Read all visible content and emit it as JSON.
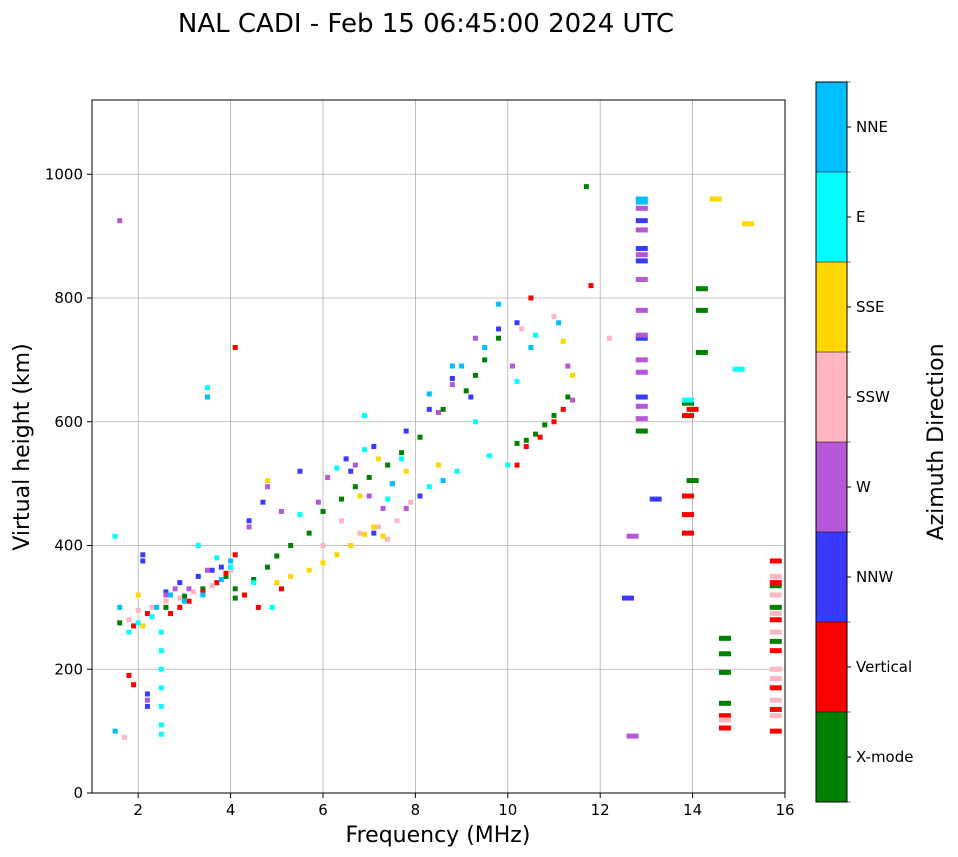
{
  "chart_data": {
    "type": "scatter",
    "title": "NAL CADI - Feb 15 06:45:00 2024 UTC",
    "xlabel": "Frequency (MHz)",
    "ylabel": "Virtual height (km)",
    "xlim": [
      1,
      16
    ],
    "ylim": [
      0,
      1120
    ],
    "xticks": [
      "2",
      "4",
      "6",
      "8",
      "10",
      "12",
      "14",
      "16"
    ],
    "yticks": [
      "0",
      "200",
      "400",
      "600",
      "800",
      "1000"
    ],
    "grid": true,
    "colorbar": {
      "label": "Azimuth Direction",
      "categories": [
        {
          "name": "X-mode",
          "color": "#008000"
        },
        {
          "name": "Vertical",
          "color": "#ff0000"
        },
        {
          "name": "NNW",
          "color": "#3a3aff"
        },
        {
          "name": "W",
          "color": "#b557d6"
        },
        {
          "name": "SSW",
          "color": "#ffb6c1"
        },
        {
          "name": "SSE",
          "color": "#ffd700"
        },
        {
          "name": "E",
          "color": "#00ffff"
        },
        {
          "name": "NNE",
          "color": "#00bfff"
        }
      ]
    },
    "series": [
      {
        "name": "X-mode",
        "points": [
          [
            1.6,
            275
          ],
          [
            2.6,
            300
          ],
          [
            3.0,
            318
          ],
          [
            3.4,
            330
          ],
          [
            3.9,
            350
          ],
          [
            4.1,
            330
          ],
          [
            4.1,
            315
          ],
          [
            4.5,
            345
          ],
          [
            4.8,
            365
          ],
          [
            5.0,
            383
          ],
          [
            5.3,
            400
          ],
          [
            5.7,
            420
          ],
          [
            6.0,
            455
          ],
          [
            6.4,
            475
          ],
          [
            6.7,
            495
          ],
          [
            7.0,
            510
          ],
          [
            7.4,
            530
          ],
          [
            7.7,
            550
          ],
          [
            8.1,
            575
          ],
          [
            8.6,
            620
          ],
          [
            9.1,
            650
          ],
          [
            9.3,
            675
          ],
          [
            9.5,
            700
          ],
          [
            9.8,
            735
          ],
          [
            10.2,
            565
          ],
          [
            10.4,
            570
          ],
          [
            10.6,
            580
          ],
          [
            10.8,
            595
          ],
          [
            11.0,
            610
          ],
          [
            11.3,
            640
          ],
          [
            12.9,
            585
          ],
          [
            14.2,
            780
          ],
          [
            14.2,
            815
          ],
          [
            14.2,
            712
          ],
          [
            14.7,
            250
          ],
          [
            14.7,
            225
          ],
          [
            14.7,
            195
          ],
          [
            14.7,
            145
          ],
          [
            15.8,
            335
          ],
          [
            15.8,
            300
          ],
          [
            15.8,
            245
          ],
          [
            11.7,
            980
          ],
          [
            13.9,
            630
          ],
          [
            14.0,
            505
          ]
        ]
      },
      {
        "name": "Vertical",
        "points": [
          [
            1.9,
            270
          ],
          [
            2.2,
            290
          ],
          [
            2.7,
            290
          ],
          [
            2.9,
            300
          ],
          [
            3.1,
            310
          ],
          [
            3.4,
            325
          ],
          [
            3.7,
            340
          ],
          [
            3.9,
            355
          ],
          [
            4.1,
            385
          ],
          [
            4.3,
            320
          ],
          [
            4.6,
            300
          ],
          [
            5.1,
            330
          ],
          [
            10.2,
            530
          ],
          [
            10.4,
            560
          ],
          [
            10.7,
            575
          ],
          [
            11.0,
            600
          ],
          [
            11.2,
            620
          ],
          [
            10.5,
            800
          ],
          [
            11.8,
            820
          ],
          [
            4.1,
            720
          ],
          [
            13.9,
            610
          ],
          [
            13.9,
            480
          ],
          [
            13.9,
            450
          ],
          [
            13.9,
            420
          ],
          [
            15.8,
            375
          ],
          [
            15.8,
            340
          ],
          [
            15.8,
            280
          ],
          [
            15.8,
            230
          ],
          [
            15.8,
            170
          ],
          [
            15.8,
            135
          ],
          [
            15.8,
            100
          ],
          [
            14.7,
            105
          ],
          [
            14.7,
            125
          ],
          [
            1.8,
            190
          ],
          [
            1.9,
            175
          ],
          [
            14.0,
            620
          ]
        ]
      },
      {
        "name": "NNW",
        "points": [
          [
            2.1,
            375
          ],
          [
            2.1,
            385
          ],
          [
            2.6,
            325
          ],
          [
            2.9,
            340
          ],
          [
            3.3,
            350
          ],
          [
            3.6,
            360
          ],
          [
            3.8,
            365
          ],
          [
            4.4,
            440
          ],
          [
            4.7,
            470
          ],
          [
            5.5,
            520
          ],
          [
            6.5,
            540
          ],
          [
            6.6,
            520
          ],
          [
            7.1,
            560
          ],
          [
            7.8,
            585
          ],
          [
            8.3,
            620
          ],
          [
            8.8,
            670
          ],
          [
            9.2,
            640
          ],
          [
            9.8,
            750
          ],
          [
            10.2,
            760
          ],
          [
            12.9,
            925
          ],
          [
            12.9,
            880
          ],
          [
            12.9,
            860
          ],
          [
            12.9,
            640
          ],
          [
            12.9,
            735
          ],
          [
            2.2,
            160
          ],
          [
            2.2,
            140
          ],
          [
            12.6,
            315
          ],
          [
            13.2,
            475
          ],
          [
            7.1,
            420
          ],
          [
            8.1,
            480
          ]
        ]
      },
      {
        "name": "W",
        "points": [
          [
            2.6,
            320
          ],
          [
            2.8,
            330
          ],
          [
            3.1,
            330
          ],
          [
            3.5,
            360
          ],
          [
            4.4,
            430
          ],
          [
            4.8,
            495
          ],
          [
            5.1,
            455
          ],
          [
            5.9,
            470
          ],
          [
            6.1,
            510
          ],
          [
            6.7,
            530
          ],
          [
            7.0,
            480
          ],
          [
            7.3,
            460
          ],
          [
            7.5,
            500
          ],
          [
            7.8,
            460
          ],
          [
            8.5,
            615
          ],
          [
            8.8,
            660
          ],
          [
            9.3,
            735
          ],
          [
            10.1,
            690
          ],
          [
            11.4,
            635
          ],
          [
            12.9,
            945
          ],
          [
            12.9,
            910
          ],
          [
            12.9,
            870
          ],
          [
            12.9,
            830
          ],
          [
            12.9,
            780
          ],
          [
            12.9,
            740
          ],
          [
            12.9,
            700
          ],
          [
            12.9,
            680
          ],
          [
            12.9,
            625
          ],
          [
            12.9,
            605
          ],
          [
            12.7,
            415
          ],
          [
            12.7,
            92
          ],
          [
            2.2,
            150
          ],
          [
            1.6,
            925
          ],
          [
            11.3,
            690
          ]
        ]
      },
      {
        "name": "SSW",
        "points": [
          [
            1.8,
            280
          ],
          [
            2.0,
            295
          ],
          [
            2.3,
            300
          ],
          [
            2.6,
            310
          ],
          [
            2.9,
            315
          ],
          [
            3.2,
            325
          ],
          [
            3.6,
            335
          ],
          [
            4.0,
            360
          ],
          [
            6.8,
            420
          ],
          [
            7.2,
            430
          ],
          [
            7.4,
            410
          ],
          [
            7.6,
            440
          ],
          [
            7.9,
            470
          ],
          [
            10.3,
            750
          ],
          [
            11.0,
            770
          ],
          [
            12.2,
            735
          ],
          [
            15.8,
            350
          ],
          [
            15.8,
            320
          ],
          [
            15.8,
            290
          ],
          [
            15.8,
            260
          ],
          [
            15.8,
            200
          ],
          [
            15.8,
            185
          ],
          [
            15.8,
            150
          ],
          [
            15.8,
            125
          ],
          [
            14.7,
            118
          ],
          [
            1.7,
            90
          ],
          [
            6.0,
            400
          ],
          [
            6.4,
            440
          ]
        ]
      },
      {
        "name": "SSE",
        "points": [
          [
            5.3,
            350
          ],
          [
            5.7,
            360
          ],
          [
            6.0,
            372
          ],
          [
            6.3,
            385
          ],
          [
            6.6,
            400
          ],
          [
            6.9,
            418
          ],
          [
            7.1,
            430
          ],
          [
            7.3,
            415
          ],
          [
            6.8,
            480
          ],
          [
            7.2,
            540
          ],
          [
            7.8,
            520
          ],
          [
            8.5,
            530
          ],
          [
            11.4,
            675
          ],
          [
            11.2,
            730
          ],
          [
            14.5,
            960
          ],
          [
            15.2,
            920
          ],
          [
            2.1,
            270
          ],
          [
            4.8,
            505
          ],
          [
            5.0,
            340
          ],
          [
            2.0,
            320
          ]
        ]
      },
      {
        "name": "E",
        "points": [
          [
            1.5,
            415
          ],
          [
            1.8,
            260
          ],
          [
            2.0,
            275
          ],
          [
            2.3,
            285
          ],
          [
            2.5,
            260
          ],
          [
            2.5,
            230
          ],
          [
            2.5,
            200
          ],
          [
            2.5,
            170
          ],
          [
            2.5,
            140
          ],
          [
            2.5,
            110
          ],
          [
            2.5,
            95
          ],
          [
            3.3,
            400
          ],
          [
            3.7,
            380
          ],
          [
            4.0,
            365
          ],
          [
            4.5,
            340
          ],
          [
            4.9,
            300
          ],
          [
            5.5,
            450
          ],
          [
            6.3,
            525
          ],
          [
            6.9,
            555
          ],
          [
            7.4,
            475
          ],
          [
            7.7,
            540
          ],
          [
            8.3,
            495
          ],
          [
            8.9,
            520
          ],
          [
            9.3,
            600
          ],
          [
            9.6,
            545
          ],
          [
            10.0,
            530
          ],
          [
            10.2,
            665
          ],
          [
            10.6,
            740
          ],
          [
            15.0,
            685
          ],
          [
            13.9,
            635
          ],
          [
            6.9,
            610
          ],
          [
            3.5,
            655
          ]
        ]
      },
      {
        "name": "NNE",
        "points": [
          [
            1.6,
            300
          ],
          [
            2.4,
            300
          ],
          [
            2.7,
            320
          ],
          [
            3.0,
            310
          ],
          [
            3.4,
            320
          ],
          [
            3.8,
            345
          ],
          [
            4.0,
            375
          ],
          [
            3.5,
            640
          ],
          [
            8.3,
            645
          ],
          [
            8.8,
            690
          ],
          [
            9.0,
            690
          ],
          [
            9.5,
            720
          ],
          [
            9.8,
            790
          ],
          [
            10.5,
            720
          ],
          [
            11.1,
            760
          ],
          [
            12.9,
            960
          ],
          [
            12.9,
            955
          ],
          [
            7.5,
            500
          ],
          [
            8.6,
            505
          ],
          [
            1.5,
            100
          ]
        ]
      }
    ]
  }
}
